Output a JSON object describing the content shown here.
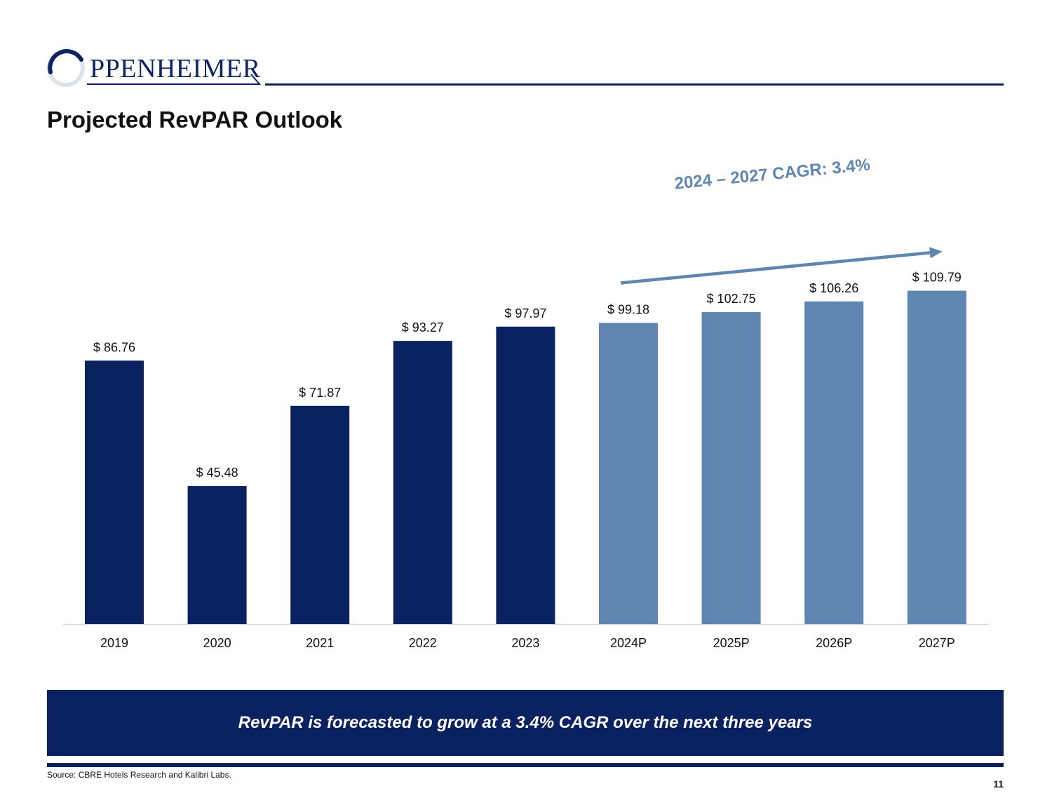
{
  "header": {
    "logo_text": "PPENHEIMER",
    "page_title": "Projected RevPAR Outlook"
  },
  "chart_data": {
    "type": "bar",
    "title": "Projected RevPAR Outlook",
    "categories": [
      "2019",
      "2020",
      "2021",
      "2022",
      "2023",
      "2024P",
      "2025P",
      "2026P",
      "2027P"
    ],
    "values": [
      86.76,
      45.48,
      71.87,
      93.27,
      97.97,
      99.18,
      102.75,
      106.26,
      109.79
    ],
    "data_labels": [
      "$ 86.76",
      "$ 45.48",
      "$ 71.87",
      "$ 93.27",
      "$ 97.97",
      "$ 99.18",
      "$ 102.75",
      "$ 106.26",
      "$ 109.79"
    ],
    "projected": [
      false,
      false,
      false,
      false,
      false,
      true,
      true,
      true,
      true
    ],
    "colors": {
      "historical": "#0b2260",
      "projected": "#5f86b1",
      "arrow": "#5f86b1"
    },
    "annotation": "2024 – 2027 CAGR: 3.4%",
    "ylim": [
      0,
      110
    ],
    "xlabel": "",
    "ylabel": "",
    "grid": false
  },
  "banner": {
    "text": "RevPAR is forecasted to grow at a 3.4% CAGR over the next three years"
  },
  "footer": {
    "source": "Source: CBRE Hotels Research and Kalibri Labs.",
    "page_number": "11"
  }
}
